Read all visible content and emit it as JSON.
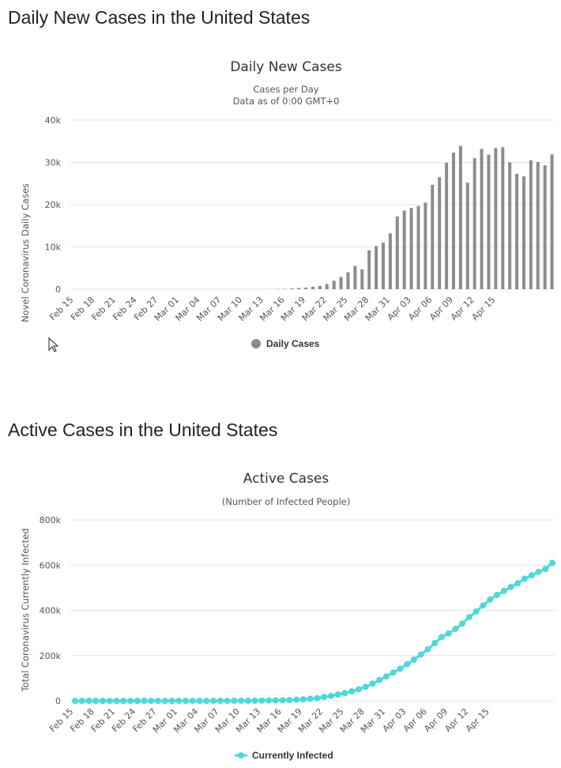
{
  "sections": [
    {
      "heading": "Daily New Cases in the United States"
    },
    {
      "heading": "Active Cases in the United States"
    }
  ],
  "chart_data": [
    {
      "type": "bar",
      "title": "Daily New Cases",
      "subtitle": [
        "Cases per Day",
        "Data as of 0:00 GMT+0"
      ],
      "xlabel": "",
      "ylabel": "Novel Coronavirus Daily Cases",
      "ylim": [
        0,
        40000
      ],
      "yticks": [
        0,
        10000,
        20000,
        30000,
        40000
      ],
      "ytick_labels": [
        "0",
        "10k",
        "20k",
        "30k",
        "40k"
      ],
      "x_tick_labels": [
        "Feb 15",
        "Feb 18",
        "Feb 21",
        "Feb 24",
        "Feb 27",
        "Mar 01",
        "Mar 04",
        "Mar 07",
        "Mar 10",
        "Mar 13",
        "Mar 16",
        "Mar 19",
        "Mar 22",
        "Mar 25",
        "Mar 28",
        "Mar 31",
        "Apr 03",
        "Apr 06",
        "Apr 09",
        "Apr 12",
        "Apr 15"
      ],
      "grid": true,
      "legend": {
        "position": "bottom-center",
        "entries": [
          "Daily Cases"
        ]
      },
      "color": "#8c8c8c",
      "series": [
        {
          "name": "Daily Cases",
          "values": [
            0,
            0,
            0,
            0,
            0,
            0,
            0,
            0,
            0,
            0,
            0,
            0,
            0,
            0,
            0,
            0,
            0,
            0,
            0,
            0,
            0,
            0,
            0,
            0,
            0,
            0,
            0,
            30,
            50,
            60,
            100,
            200,
            300,
            400,
            600,
            800,
            1200,
            2000,
            2900,
            4000,
            5500,
            4700,
            9200,
            10200,
            11000,
            13200,
            17200,
            18600,
            19200,
            19700,
            20500,
            24700,
            26500,
            29900,
            32300,
            33900,
            25200,
            31000,
            33200,
            31800,
            33400,
            33600,
            30000,
            27300,
            26700,
            30500,
            30100,
            29300,
            31900
          ]
        }
      ]
    },
    {
      "type": "line",
      "title": "Active Cases",
      "subtitle": [
        "(Number of Infected People)"
      ],
      "xlabel": "",
      "ylabel": "Total Coronavirus Currently Infected",
      "ylim": [
        0,
        800000
      ],
      "yticks": [
        0,
        200000,
        400000,
        600000,
        800000
      ],
      "ytick_labels": [
        "0",
        "200k",
        "400k",
        "600k",
        "800k"
      ],
      "x_tick_labels": [
        "Feb 15",
        "Feb 18",
        "Feb 21",
        "Feb 24",
        "Feb 27",
        "Mar 01",
        "Mar 04",
        "Mar 07",
        "Mar 10",
        "Mar 13",
        "Mar 16",
        "Mar 19",
        "Mar 22",
        "Mar 25",
        "Mar 28",
        "Mar 31",
        "Apr 03",
        "Apr 06",
        "Apr 09",
        "Apr 12",
        "Apr 15"
      ],
      "grid": true,
      "legend": {
        "position": "bottom-center",
        "entries": [
          "Currently Infected"
        ]
      },
      "color": "#50d8d8",
      "series": [
        {
          "name": "Currently Infected",
          "values": [
            10,
            10,
            10,
            10,
            10,
            10,
            10,
            10,
            10,
            10,
            10,
            20,
            30,
            40,
            50,
            60,
            70,
            90,
            100,
            110,
            150,
            200,
            300,
            400,
            500,
            600,
            800,
            1000,
            1500,
            2000,
            2500,
            3500,
            5000,
            6500,
            9000,
            12000,
            17000,
            22000,
            28000,
            34000,
            42000,
            51000,
            62000,
            76000,
            92000,
            108000,
            125000,
            142000,
            162000,
            182000,
            205000,
            228000,
            255000,
            282000,
            298000,
            318000,
            342000,
            370000,
            395000,
            422000,
            448000,
            468000,
            486000,
            503000,
            520000,
            540000,
            555000,
            570000,
            583000,
            610000
          ]
        }
      ]
    }
  ]
}
